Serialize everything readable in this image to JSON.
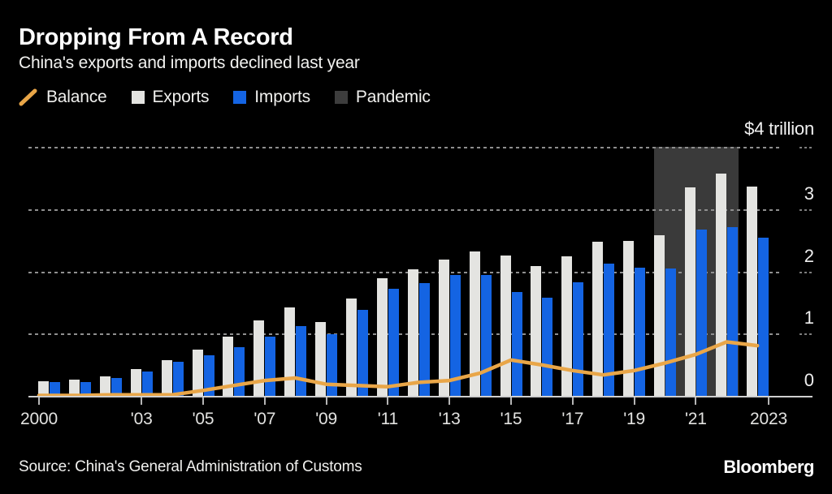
{
  "header": {
    "title": "Dropping From A Record",
    "subtitle": "China's exports and imports declined last year"
  },
  "legend": {
    "items": [
      {
        "label": "Balance",
        "swatch": "line",
        "color": "#e9a648"
      },
      {
        "label": "Exports",
        "swatch": "square",
        "color": "#e4e4e1"
      },
      {
        "label": "Imports",
        "swatch": "square",
        "color": "#1464e3"
      },
      {
        "label": "Pandemic",
        "swatch": "square",
        "color": "#3d3d3d"
      }
    ]
  },
  "chart_data": {
    "type": "bar",
    "title": "Dropping From A Record",
    "subtitle": "China's exports and imports declined last year",
    "unit": "USD trillion",
    "categories": [
      2000,
      2001,
      2002,
      2003,
      2004,
      2005,
      2006,
      2007,
      2008,
      2009,
      2010,
      2011,
      2012,
      2013,
      2014,
      2015,
      2016,
      2017,
      2018,
      2019,
      2020,
      2021,
      2022,
      2023
    ],
    "series": [
      {
        "name": "Exports",
        "type": "bar",
        "color": "#e4e4e1",
        "values": [
          0.25,
          0.27,
          0.33,
          0.44,
          0.59,
          0.76,
          0.97,
          1.22,
          1.43,
          1.2,
          1.58,
          1.9,
          2.05,
          2.21,
          2.34,
          2.27,
          2.1,
          2.26,
          2.49,
          2.5,
          2.59,
          3.36,
          3.59,
          3.38
        ]
      },
      {
        "name": "Imports",
        "type": "bar",
        "color": "#1464e3",
        "values": [
          0.23,
          0.24,
          0.3,
          0.41,
          0.56,
          0.66,
          0.79,
          0.96,
          1.13,
          1.01,
          1.4,
          1.74,
          1.82,
          1.95,
          1.96,
          1.68,
          1.59,
          1.84,
          2.14,
          2.08,
          2.06,
          2.69,
          2.72,
          2.56
        ]
      },
      {
        "name": "Balance",
        "type": "line",
        "color": "#e9a648",
        "values": [
          0.02,
          0.02,
          0.03,
          0.03,
          0.03,
          0.1,
          0.18,
          0.26,
          0.3,
          0.2,
          0.18,
          0.16,
          0.23,
          0.26,
          0.38,
          0.59,
          0.51,
          0.42,
          0.35,
          0.42,
          0.54,
          0.68,
          0.88,
          0.82
        ]
      }
    ],
    "pandemic_band": {
      "label": "Pandemic",
      "from_year": 2020,
      "to_year": 2022,
      "color": "#3a3a3a"
    },
    "ylim": [
      0,
      4
    ],
    "yticks": [
      0,
      1,
      2,
      3
    ],
    "y_top_label": "$4 trillion",
    "xticks": [
      {
        "label": "2000",
        "year": 2000
      },
      {
        "label": "'03",
        "year": 2003
      },
      {
        "label": "'05",
        "year": 2005
      },
      {
        "label": "'07",
        "year": 2007
      },
      {
        "label": "'09",
        "year": 2009
      },
      {
        "label": "'11",
        "year": 2011
      },
      {
        "label": "'13",
        "year": 2013
      },
      {
        "label": "'15",
        "year": 2015
      },
      {
        "label": "'17",
        "year": 2017
      },
      {
        "label": "'19",
        "year": 2019
      },
      {
        "label": "'21",
        "year": 2021
      },
      {
        "label": "2023",
        "year": 2023
      }
    ],
    "grid": "dashed-horizontal",
    "legend_position": "top"
  },
  "footer": {
    "source": "Source: China's General Administration of Customs",
    "brand": "Bloomberg"
  }
}
